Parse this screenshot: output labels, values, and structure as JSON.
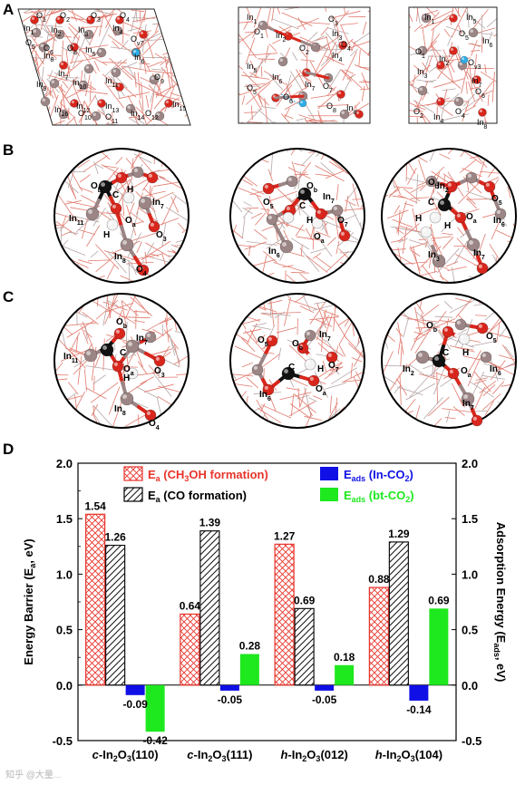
{
  "panels": {
    "a": "A",
    "b": "B",
    "c": "C",
    "d": "D"
  },
  "structures": {
    "a1": [
      "O1",
      "O2",
      "O3",
      "O4",
      "In1",
      "In2",
      "In3",
      "In4",
      "Ov7",
      "O5",
      "O6",
      "In5",
      "In6",
      "In7",
      "In8",
      "O8",
      "In9",
      "In10",
      "In11",
      "O9",
      "In12",
      "In13",
      "O10",
      "O11",
      "In14",
      "In15",
      "O12",
      "In16"
    ],
    "a2": [
      "In1",
      "O1",
      "In2",
      "O2",
      "O3",
      "In3",
      "O4",
      "In4",
      "In5",
      "O5",
      "In6",
      "O6",
      "In7",
      "O7",
      "O8",
      "In8"
    ],
    "a3": [
      "In1",
      "In5",
      "O5",
      "In6",
      "O1",
      "In2",
      "Ov3",
      "In3",
      "In7",
      "O6",
      "O2",
      "In4",
      "O4",
      "In8"
    ],
    "b1": [
      "Ob",
      "C",
      "H",
      "In11",
      "H",
      "Oa",
      "In7",
      "O3",
      "In8",
      "O4"
    ],
    "b2": [
      "Ob",
      "O5",
      "C",
      "In7",
      "H",
      "O7",
      "Oa",
      "In6"
    ],
    "b3": [
      "Ob",
      "In2",
      "O5",
      "C",
      "H",
      "Oa",
      "H",
      "In6",
      "In3",
      "In7"
    ],
    "c1": [
      "Ob",
      "C",
      "In11",
      "In7",
      "Oa",
      "H",
      "O3",
      "In8",
      "O4"
    ],
    "c2": [
      "O5",
      "Ob",
      "In7",
      "H",
      "O7",
      "C",
      "Oa",
      "In6"
    ],
    "c3": [
      "Ob",
      "O5",
      "H",
      "C",
      "In2",
      "Oa",
      "In6",
      "In7"
    ]
  },
  "chart_data": {
    "type": "bar",
    "categories": [
      "c-In2O3(110)",
      "c-In2O3(111)",
      "h-In2O3(012)",
      "h-In2O3(104)"
    ],
    "category_labels": [
      {
        "prefix": "c",
        "base": "-In",
        "sub1": "2",
        "mid": "O",
        "sub2": "3",
        "suffix": "(110)"
      },
      {
        "prefix": "c",
        "base": "-In",
        "sub1": "2",
        "mid": "O",
        "sub2": "3",
        "suffix": "(111)"
      },
      {
        "prefix": "h",
        "base": "-In",
        "sub1": "2",
        "mid": "O",
        "sub2": "3",
        "suffix": "(012)"
      },
      {
        "prefix": "h",
        "base": "-In",
        "sub1": "2",
        "mid": "O",
        "sub2": "3",
        "suffix": "(104)"
      }
    ],
    "series": [
      {
        "name": "Ea (CH3OH formation)",
        "axis": "left",
        "values": [
          1.54,
          0.64,
          1.27,
          0.88
        ],
        "color": "#e8342b",
        "pattern": "crosshatch"
      },
      {
        "name": "Ea (CO formation)",
        "axis": "left",
        "values": [
          1.26,
          1.39,
          0.69,
          1.29
        ],
        "color": "#111111",
        "pattern": "diagonal"
      },
      {
        "name": "Eads (In-CO2)",
        "axis": "right",
        "values": [
          -0.09,
          -0.05,
          -0.05,
          -0.14
        ],
        "color": "#1010e6",
        "pattern": "solid"
      },
      {
        "name": "Eads (bt-CO2)",
        "axis": "right",
        "values": [
          -0.42,
          0.28,
          0.18,
          0.69
        ],
        "color": "#1ee81e",
        "pattern": "solid"
      }
    ],
    "value_labels": [
      [
        "1.54",
        "0.64",
        "1.27",
        "0.88"
      ],
      [
        "1.26",
        "1.39",
        "0.69",
        "1.29"
      ],
      [
        "-0.09",
        "-0.05",
        "-0.05",
        "-0.14"
      ],
      [
        "-0.42",
        "0.28",
        "0.18",
        "0.69"
      ]
    ],
    "legend": {
      "items": [
        {
          "main": "E",
          "sub": "a",
          "rest1": " (CH",
          "sub2": "3",
          "rest2": "OH formation)",
          "color": "#e8342b"
        },
        {
          "main": "E",
          "sub": "a",
          "rest1": " (CO formation)",
          "sub2": "",
          "rest2": "",
          "color": "#000000"
        },
        {
          "main": "E",
          "sub": "ads",
          "rest1": " (In-CO",
          "sub2": "2",
          "rest2": ")",
          "color": "#1010e6"
        },
        {
          "main": "E",
          "sub": "ads",
          "rest1": " (bt-CO",
          "sub2": "2",
          "rest2": ")",
          "color": "#1ee81e"
        }
      ]
    },
    "ylabel_left": {
      "main": "Energy Barrier (E",
      "sub": "a",
      "rest": ", eV)"
    },
    "ylabel_right": {
      "main": "Adsorption Energy (E",
      "sub": "ads",
      "rest": ", eV)"
    },
    "ylim": [
      -0.5,
      2.0
    ],
    "yticks": [
      "-0.5",
      "0.0",
      "0.5",
      "1.0",
      "1.5",
      "2.0"
    ],
    "ytick_values": [
      -0.5,
      0.0,
      0.5,
      1.0,
      1.5,
      2.0
    ]
  },
  "watermark": "知乎 @大量..."
}
